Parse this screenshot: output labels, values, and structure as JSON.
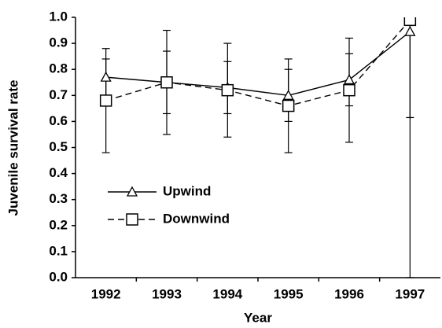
{
  "chart_data": {
    "type": "line",
    "x_label": "Year",
    "y_label": "Juvenile survival rate",
    "categories": [
      "1992",
      "1993",
      "1994",
      "1995",
      "1996",
      "1997"
    ],
    "series": [
      {
        "name": "Upwind",
        "color": "#000000",
        "linestyle": "solid",
        "marker": "triangle",
        "values": [
          0.77,
          0.75,
          0.73,
          0.7,
          0.76,
          0.945
        ],
        "errors": [
          0.07,
          0.12,
          0.1,
          0.1,
          0.1,
          0.33
        ]
      },
      {
        "name": "Downwind",
        "color": "#000000",
        "linestyle": "dashed",
        "marker": "square",
        "values": [
          0.68,
          0.75,
          0.72,
          0.66,
          0.72,
          0.99
        ],
        "errors": [
          0.2,
          0.2,
          0.18,
          0.18,
          0.2,
          0.99
        ]
      }
    ],
    "ylim": [
      0,
      1
    ],
    "yticks": [
      {
        "value": 0,
        "label": "0.0"
      },
      0.1,
      0.2,
      0.3,
      0.4,
      0.5,
      0.6,
      0.7,
      0.8,
      0.9,
      {
        "value": 1,
        "label": "1.0"
      }
    ],
    "legend": "lower left"
  }
}
